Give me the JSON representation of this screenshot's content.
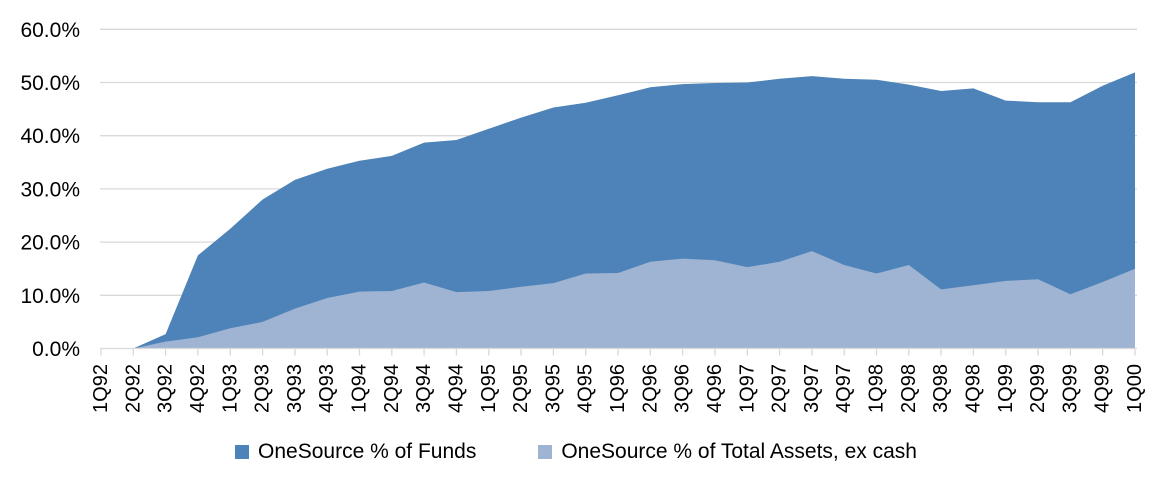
{
  "chart_data": {
    "type": "area",
    "title": "",
    "xlabel": "",
    "ylabel": "",
    "overlapping": true,
    "grid": true,
    "legend_position": "bottom",
    "categories": [
      "1Q92",
      "2Q92",
      "3Q92",
      "4Q92",
      "1Q93",
      "2Q93",
      "3Q93",
      "4Q93",
      "1Q94",
      "2Q94",
      "3Q94",
      "4Q94",
      "1Q95",
      "2Q95",
      "3Q95",
      "4Q95",
      "1Q96",
      "2Q96",
      "3Q96",
      "4Q96",
      "1Q97",
      "2Q97",
      "3Q97",
      "4Q97",
      "1Q98",
      "2Q98",
      "3Q98",
      "4Q98",
      "1Q99",
      "2Q99",
      "3Q99",
      "4Q99",
      "1Q00"
    ],
    "series": [
      {
        "name": "OneSource % of Funds",
        "color": "#4D83B8",
        "values": [
          0.0,
          0.0,
          2.7,
          17.5,
          22.5,
          28.0,
          31.7,
          33.8,
          35.3,
          36.2,
          38.7,
          39.2,
          41.3,
          43.4,
          45.3,
          46.2,
          47.6,
          49.1,
          49.7,
          49.9,
          50.0,
          50.7,
          51.2,
          50.7,
          50.5,
          49.6,
          48.4,
          48.9,
          46.6,
          46.3,
          46.3,
          49.4,
          51.9
        ]
      },
      {
        "name": "OneSource % of Total Assets, ex cash",
        "color": "#9FB3D3",
        "values": [
          0.0,
          0.0,
          1.3,
          2.1,
          3.8,
          5.0,
          7.5,
          9.5,
          10.7,
          10.8,
          12.4,
          10.6,
          10.8,
          11.6,
          12.3,
          14.1,
          14.2,
          16.3,
          16.9,
          16.6,
          15.3,
          16.3,
          18.3,
          15.7,
          14.1,
          15.7,
          11.1,
          11.9,
          12.7,
          13.0,
          10.2,
          12.5,
          15.0
        ]
      }
    ],
    "y_axis": {
      "min": 0,
      "max": 60,
      "step": 10
    },
    "y_tick_labels": [
      "0.0%",
      "10.0%",
      "20.0%",
      "30.0%",
      "40.0%",
      "50.0%",
      "60.0%"
    ],
    "gridline_color": "#d9d9d9"
  }
}
